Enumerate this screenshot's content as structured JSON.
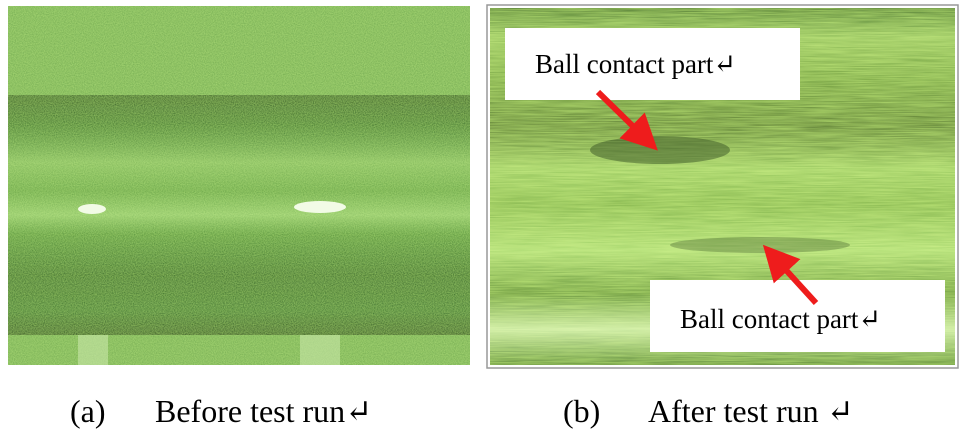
{
  "panels": [
    {
      "label": "(a)",
      "caption": "Before test run↵"
    },
    {
      "label": "(b)",
      "caption": "After test run ↵",
      "annotations": [
        "Ball contact part↵",
        "Ball contact part↵"
      ]
    }
  ]
}
